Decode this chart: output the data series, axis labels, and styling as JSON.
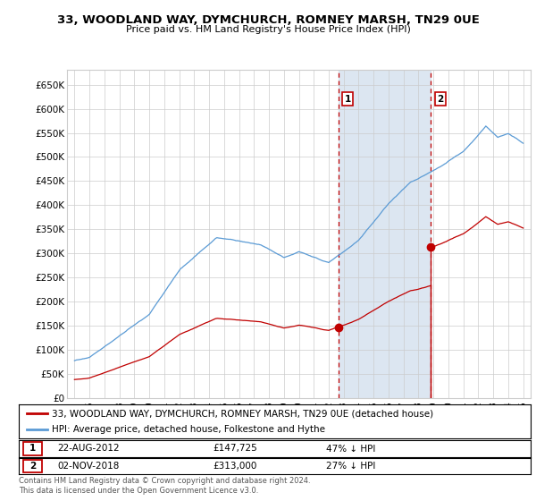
{
  "title": "33, WOODLAND WAY, DYMCHURCH, ROMNEY MARSH, TN29 0UE",
  "subtitle": "Price paid vs. HM Land Registry's House Price Index (HPI)",
  "ylim": [
    0,
    680000
  ],
  "yticks": [
    0,
    50000,
    100000,
    150000,
    200000,
    250000,
    300000,
    350000,
    400000,
    450000,
    500000,
    550000,
    600000,
    650000
  ],
  "ytick_labels": [
    "£0",
    "£50K",
    "£100K",
    "£150K",
    "£200K",
    "£250K",
    "£300K",
    "£350K",
    "£400K",
    "£450K",
    "£500K",
    "£550K",
    "£600K",
    "£650K"
  ],
  "hpi_color": "#5b9bd5",
  "property_color": "#c00000",
  "sale1_year": 2012.64,
  "sale1_price": 147725,
  "sale2_year": 2018.84,
  "sale2_price": 313000,
  "legend_property": "33, WOODLAND WAY, DYMCHURCH, ROMNEY MARSH, TN29 0UE (detached house)",
  "legend_hpi": "HPI: Average price, detached house, Folkestone and Hythe",
  "table_row1": [
    "1",
    "22-AUG-2012",
    "£147,725",
    "47% ↓ HPI"
  ],
  "table_row2": [
    "2",
    "02-NOV-2018",
    "£313,000",
    "27% ↓ HPI"
  ],
  "footnote": "Contains HM Land Registry data © Crown copyright and database right 2024.\nThis data is licensed under the Open Government Licence v3.0.",
  "background_color": "#ffffff",
  "grid_color": "#cccccc",
  "shaded_region_color": "#dce6f1",
  "xlim_start": 1994.5,
  "xlim_end": 2025.5,
  "hpi_start_year": 1995,
  "hpi_end_year": 2025,
  "hpi_noise_std": 3000,
  "prop_noise_std": 1500
}
